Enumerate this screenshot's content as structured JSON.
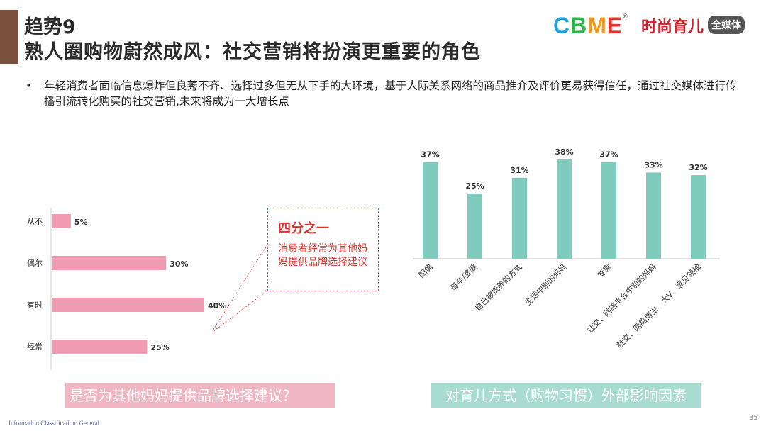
{
  "header": {
    "title_line1": "趋势9",
    "title_line2": "熟人圈购物蔚然成风：社交营销将扮演更重要的角色",
    "logo_cbme_letters": [
      "C",
      "B",
      "M",
      "E"
    ],
    "logo_cbme_colors": [
      "#1f9fd8",
      "#2db34a",
      "#f39a1d",
      "#e2322c"
    ],
    "logo_reg": "®",
    "logo_fashion": "时尚育儿",
    "logo_media": "全媒体"
  },
  "body": {
    "bullet": "•",
    "text": "年轻消费者面临信息爆炸但良莠不齐、选择过多但无从下手的大环境，基于人际关系网络的商品推介及评价更易获得信任，通过社交媒体进行传播引流转化购买的社交营销,未来将成为一大增长点"
  },
  "callout": {
    "title": "四分之一",
    "text": "消费者经常为其他妈妈提供品牌选择建议"
  },
  "captions": {
    "left": "是否为其他妈妈提供品牌选择建议？",
    "right": "对育儿方式（购物习惯）外部影响因素"
  },
  "footer": {
    "classification": "Information Classification: General",
    "page": "35"
  },
  "colors": {
    "accent": "#7a4f3c",
    "pink_bar": "#f09db3",
    "teal_bar": "#7fcbbd",
    "callout_red": "#d9332e"
  },
  "chart_data": [
    {
      "type": "bar",
      "orientation": "horizontal",
      "categories": [
        "从不",
        "偶尔",
        "有时",
        "经常"
      ],
      "values": [
        5,
        30,
        40,
        25
      ],
      "data_labels": [
        "5%",
        "30%",
        "40%",
        "25%"
      ],
      "unit": "%",
      "xlim": [
        0,
        45
      ],
      "grid": false,
      "title": ""
    },
    {
      "type": "bar",
      "orientation": "vertical",
      "categories": [
        "配偶",
        "母亲/婆婆",
        "自己被抚养的方式",
        "生活中别的妈妈",
        "专家",
        "社交、网络平台中别的妈妈",
        "社交、网络博主、大V、意见领袖"
      ],
      "values": [
        37,
        25,
        31,
        38,
        37,
        33,
        32
      ],
      "data_labels": [
        "37%",
        "25%",
        "31%",
        "38%",
        "37%",
        "33%",
        "32%"
      ],
      "unit": "%",
      "ylim": [
        0,
        40
      ],
      "grid": false,
      "title": ""
    }
  ]
}
